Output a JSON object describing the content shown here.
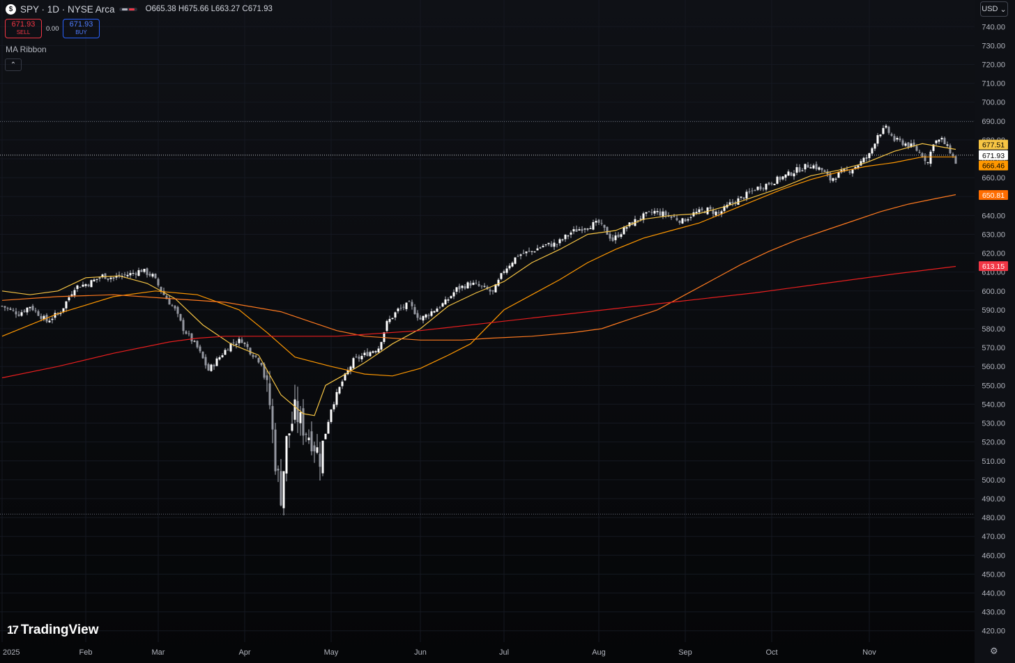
{
  "header": {
    "symbol_icon": "dollar-icon",
    "symbol_icon_glyph": "$",
    "title": "SPY · 1D · NYSE Arca",
    "ohlc": {
      "o_label": "O",
      "o": "665.38",
      "h_label": "H",
      "h": "675.66",
      "l_label": "L",
      "l": "663.27",
      "c_label": "C",
      "c": "671.93"
    }
  },
  "trade": {
    "sell_price": "671.93",
    "sell_label": "SELL",
    "spread": "0.00",
    "buy_price": "671.93",
    "buy_label": "BUY"
  },
  "indicator": {
    "label": "MA Ribbon",
    "collapse_icon": "chevron-up-icon",
    "collapse_glyph": "⌃"
  },
  "currency": {
    "label": "USD",
    "icon": "chevron-down-icon",
    "glyph": "⌄"
  },
  "branding": {
    "logo_mark": "17",
    "logo_text": "TradingView"
  },
  "settings": {
    "icon": "gear-icon",
    "glyph": "⚙"
  },
  "colors": {
    "ma1": "#f7c544",
    "ma2": "#ff9800",
    "ma3": "#ff7a1f",
    "ma4": "#e91e1e",
    "candle": "#d1d4dc",
    "background": "#0b0d12"
  },
  "chart_data": {
    "type": "candlestick",
    "symbol": "SPY",
    "interval": "1D",
    "exchange": "NYSE Arca",
    "x_tick_labels": [
      "2025",
      "Feb",
      "Mar",
      "Apr",
      "May",
      "Jun",
      "Jul",
      "Aug",
      "Sep",
      "Oct",
      "Nov"
    ],
    "y_tick_labels": [
      "420.00",
      "430.00",
      "440.00",
      "450.00",
      "460.00",
      "470.00",
      "480.00",
      "490.00",
      "500.00",
      "510.00",
      "520.00",
      "530.00",
      "540.00",
      "550.00",
      "560.00",
      "570.00",
      "580.00",
      "590.00",
      "600.00",
      "610.00",
      "620.00",
      "630.00",
      "640.00",
      "650.00",
      "660.00",
      "670.00",
      "680.00",
      "690.00",
      "700.00",
      "710.00",
      "720.00",
      "730.00",
      "740.00"
    ],
    "y_range": [
      414,
      746
    ],
    "price_labels": [
      {
        "value": 677.51,
        "text": "677.51",
        "color": "#f7c544",
        "text_color": "#000000"
      },
      {
        "value": 671.93,
        "text": "671.93",
        "color": "#ffffff",
        "text_color": "#000000"
      },
      {
        "value": 666.46,
        "text": "666.46",
        "color": "#ff9800",
        "text_color": "#000000"
      },
      {
        "value": 650.81,
        "text": "650.81",
        "color": "#ff6d00",
        "text_color": "#ffffff"
      },
      {
        "value": 613.15,
        "text": "613.15",
        "color": "#f23645",
        "text_color": "#ffffff"
      }
    ],
    "last_price": 671.93,
    "period_high": 689.7,
    "period_low": 481.8,
    "price_anchors": [
      [
        0,
        592
      ],
      [
        6,
        588
      ],
      [
        10,
        592
      ],
      [
        16,
        584
      ],
      [
        21,
        589
      ],
      [
        26,
        602
      ],
      [
        31,
        604
      ],
      [
        36,
        608
      ],
      [
        40,
        607
      ],
      [
        46,
        609
      ],
      [
        50,
        611
      ],
      [
        54,
        608
      ],
      [
        58,
        598
      ],
      [
        62,
        590
      ],
      [
        65,
        580
      ],
      [
        70,
        570
      ],
      [
        74,
        558
      ],
      [
        78,
        565
      ],
      [
        82,
        572
      ],
      [
        86,
        574
      ],
      [
        89,
        568
      ],
      [
        93,
        562
      ],
      [
        96,
        540
      ],
      [
        98,
        510
      ],
      [
        100,
        492
      ],
      [
        102,
        520
      ],
      [
        105,
        536
      ],
      [
        108,
        528
      ],
      [
        111,
        522
      ],
      [
        114,
        512
      ],
      [
        118,
        538
      ],
      [
        122,
        552
      ],
      [
        126,
        563
      ],
      [
        131,
        567
      ],
      [
        135,
        570
      ],
      [
        138,
        583
      ],
      [
        142,
        590
      ],
      [
        146,
        593
      ],
      [
        150,
        585
      ],
      [
        154,
        589
      ],
      [
        159,
        594
      ],
      [
        163,
        601
      ],
      [
        168,
        604
      ],
      [
        172,
        602
      ],
      [
        176,
        599
      ],
      [
        180,
        611
      ],
      [
        185,
        619
      ],
      [
        190,
        621
      ],
      [
        194,
        624
      ],
      [
        199,
        625
      ],
      [
        204,
        631
      ],
      [
        209,
        634
      ],
      [
        214,
        636
      ],
      [
        219,
        627
      ],
      [
        224,
        634
      ],
      [
        229,
        639
      ],
      [
        234,
        642
      ],
      [
        239,
        640
      ],
      [
        244,
        637
      ],
      [
        248,
        641
      ],
      [
        253,
        643
      ],
      [
        257,
        641
      ],
      [
        261,
        646
      ],
      [
        265,
        649
      ],
      [
        270,
        654
      ],
      [
        275,
        657
      ],
      [
        281,
        661
      ],
      [
        285,
        664
      ],
      [
        290,
        667
      ],
      [
        294,
        664
      ],
      [
        297,
        659
      ],
      [
        300,
        662
      ],
      [
        304,
        664
      ],
      [
        307,
        667
      ],
      [
        311,
        672
      ],
      [
        314,
        683
      ],
      [
        317,
        686
      ],
      [
        320,
        680
      ],
      [
        324,
        678
      ],
      [
        327,
        676
      ],
      [
        330,
        672
      ],
      [
        332,
        668
      ],
      [
        334,
        679
      ],
      [
        337,
        680
      ],
      [
        340,
        674
      ],
      [
        342,
        668
      ]
    ],
    "moving_averages": [
      {
        "key": "ma1",
        "color": "#f7c544",
        "points": [
          [
            0,
            600
          ],
          [
            10,
            598
          ],
          [
            20,
            600
          ],
          [
            30,
            607
          ],
          [
            42,
            608
          ],
          [
            52,
            604
          ],
          [
            62,
            596
          ],
          [
            72,
            582
          ],
          [
            82,
            572
          ],
          [
            92,
            566
          ],
          [
            100,
            545
          ],
          [
            108,
            535
          ],
          [
            112,
            534
          ],
          [
            116,
            550
          ],
          [
            122,
            555
          ],
          [
            130,
            562
          ],
          [
            140,
            572
          ],
          [
            150,
            580
          ],
          [
            160,
            592
          ],
          [
            170,
            599
          ],
          [
            180,
            605
          ],
          [
            190,
            615
          ],
          [
            200,
            622
          ],
          [
            210,
            630
          ],
          [
            220,
            632
          ],
          [
            230,
            638
          ],
          [
            240,
            640
          ],
          [
            250,
            641
          ],
          [
            260,
            645
          ],
          [
            270,
            650
          ],
          [
            280,
            655
          ],
          [
            290,
            661
          ],
          [
            300,
            664
          ],
          [
            310,
            668
          ],
          [
            320,
            674
          ],
          [
            330,
            678
          ],
          [
            342,
            675
          ]
        ]
      },
      {
        "key": "ma2",
        "color": "#ff9800",
        "points": [
          [
            0,
            576
          ],
          [
            20,
            588
          ],
          [
            40,
            597
          ],
          [
            55,
            600
          ],
          [
            70,
            598
          ],
          [
            85,
            590
          ],
          [
            95,
            578
          ],
          [
            105,
            565
          ],
          [
            118,
            560
          ],
          [
            130,
            556
          ],
          [
            140,
            555
          ],
          [
            150,
            559
          ],
          [
            160,
            566
          ],
          [
            168,
            572
          ],
          [
            180,
            590
          ],
          [
            190,
            598
          ],
          [
            200,
            606
          ],
          [
            210,
            615
          ],
          [
            220,
            622
          ],
          [
            230,
            628
          ],
          [
            240,
            632
          ],
          [
            250,
            636
          ],
          [
            260,
            642
          ],
          [
            270,
            648
          ],
          [
            280,
            654
          ],
          [
            290,
            659
          ],
          [
            300,
            663
          ],
          [
            310,
            666
          ],
          [
            320,
            668
          ],
          [
            330,
            671
          ],
          [
            342,
            671
          ]
        ]
      },
      {
        "key": "ma3",
        "color": "#ff7a1f",
        "points": [
          [
            0,
            595
          ],
          [
            20,
            597
          ],
          [
            40,
            598
          ],
          [
            60,
            596
          ],
          [
            80,
            594
          ],
          [
            100,
            589
          ],
          [
            110,
            584
          ],
          [
            120,
            579
          ],
          [
            130,
            576
          ],
          [
            150,
            574
          ],
          [
            165,
            574
          ],
          [
            175,
            575
          ],
          [
            190,
            576
          ],
          [
            205,
            578
          ],
          [
            215,
            580
          ],
          [
            225,
            585
          ],
          [
            235,
            590
          ],
          [
            245,
            598
          ],
          [
            255,
            606
          ],
          [
            265,
            614
          ],
          [
            275,
            621
          ],
          [
            285,
            627
          ],
          [
            295,
            632
          ],
          [
            305,
            637
          ],
          [
            315,
            642
          ],
          [
            325,
            646
          ],
          [
            335,
            649
          ],
          [
            342,
            651
          ]
        ]
      },
      {
        "key": "ma4",
        "color": "#e91e1e",
        "points": [
          [
            0,
            554
          ],
          [
            20,
            560
          ],
          [
            40,
            567
          ],
          [
            60,
            573
          ],
          [
            70,
            575
          ],
          [
            80,
            576
          ],
          [
            100,
            576
          ],
          [
            120,
            576
          ],
          [
            150,
            579
          ],
          [
            180,
            584
          ],
          [
            210,
            589
          ],
          [
            240,
            594
          ],
          [
            270,
            599
          ],
          [
            295,
            604
          ],
          [
            320,
            609
          ],
          [
            342,
            613
          ]
        ]
      }
    ]
  }
}
